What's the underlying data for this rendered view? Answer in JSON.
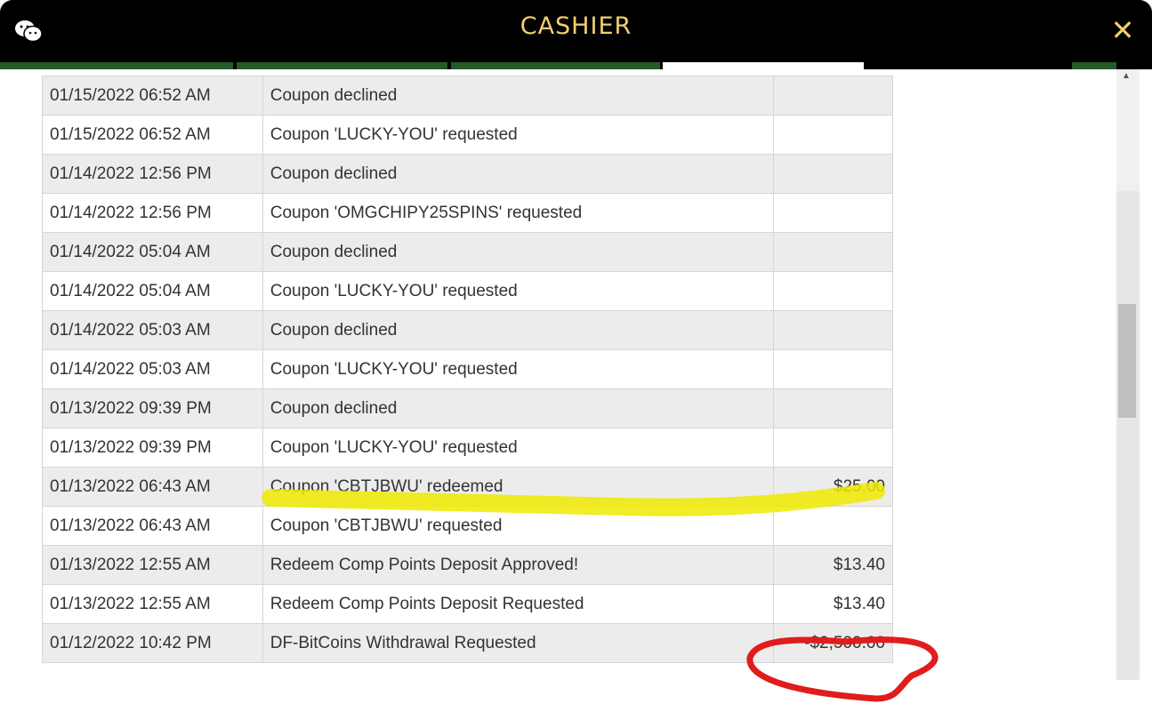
{
  "header": {
    "title": "CASHIER",
    "left_icon": "wechat-icon",
    "close_icon": "close-icon"
  },
  "colors": {
    "header_bg": "#000000",
    "title": "#f3cf6e",
    "tab_green": "#245a2a",
    "highlight": "#f0ea00",
    "circle": "#e01c1c"
  },
  "transactions": [
    {
      "date": "01/15/2022 06:52 AM",
      "description": "Coupon declined",
      "amount": ""
    },
    {
      "date": "01/15/2022 06:52 AM",
      "description": "Coupon 'LUCKY-YOU' requested",
      "amount": ""
    },
    {
      "date": "01/14/2022 12:56 PM",
      "description": "Coupon declined",
      "amount": ""
    },
    {
      "date": "01/14/2022 12:56 PM",
      "description": "Coupon 'OMGCHIPY25SPINS' requested",
      "amount": ""
    },
    {
      "date": "01/14/2022 05:04 AM",
      "description": "Coupon declined",
      "amount": ""
    },
    {
      "date": "01/14/2022 05:04 AM",
      "description": "Coupon 'LUCKY-YOU' requested",
      "amount": ""
    },
    {
      "date": "01/14/2022 05:03 AM",
      "description": "Coupon declined",
      "amount": ""
    },
    {
      "date": "01/14/2022 05:03 AM",
      "description": "Coupon 'LUCKY-YOU' requested",
      "amount": ""
    },
    {
      "date": "01/13/2022 09:39 PM",
      "description": "Coupon declined",
      "amount": ""
    },
    {
      "date": "01/13/2022 09:39 PM",
      "description": "Coupon 'LUCKY-YOU' requested",
      "amount": ""
    },
    {
      "date": "01/13/2022 06:43 AM",
      "description": "Coupon 'CBTJBWU' redeemed",
      "amount": "$25.00"
    },
    {
      "date": "01/13/2022 06:43 AM",
      "description": "Coupon 'CBTJBWU' requested",
      "amount": ""
    },
    {
      "date": "01/13/2022 12:55 AM",
      "description": "Redeem Comp Points Deposit Approved!",
      "amount": "$13.40"
    },
    {
      "date": "01/13/2022 12:55 AM",
      "description": "Redeem Comp Points Deposit Requested",
      "amount": "$13.40"
    },
    {
      "date": "01/12/2022 10:42 PM",
      "description": "DF-BitCoins Withdrawal Requested",
      "amount": "-$2,500.00"
    }
  ]
}
